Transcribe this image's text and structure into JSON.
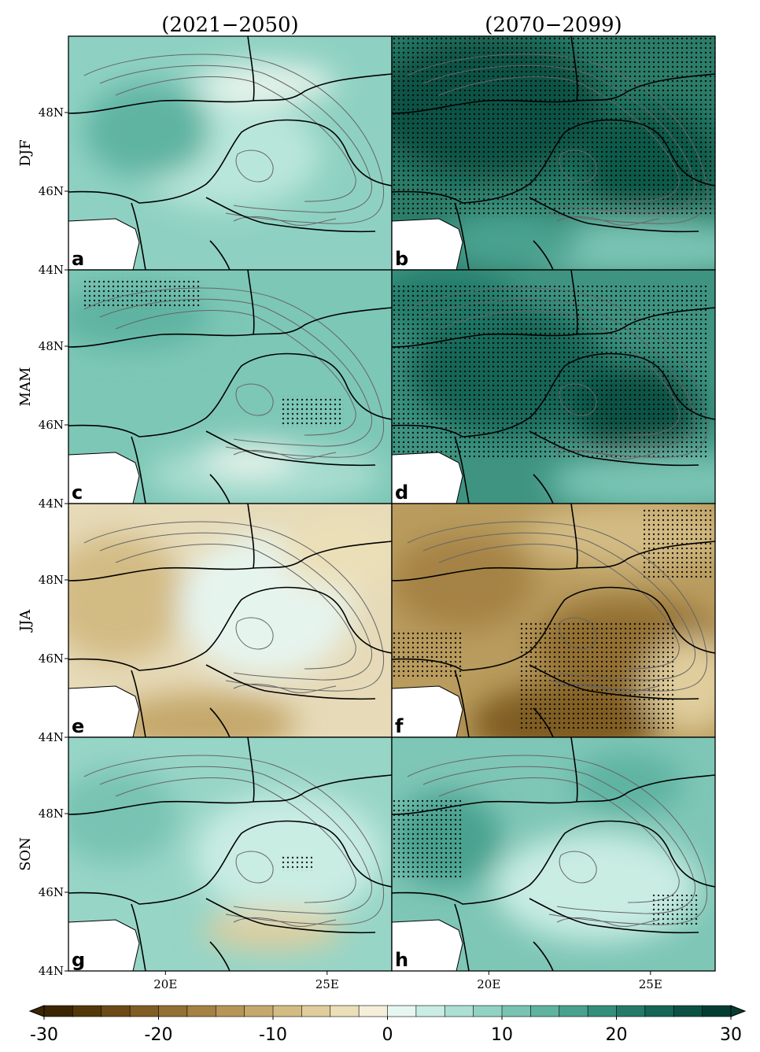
{
  "columns": [
    "(2021−2050)",
    "(2070−2099)"
  ],
  "rows": [
    "DJF",
    "MAM",
    "JJA",
    "SON"
  ],
  "panels": [
    "a",
    "b",
    "c",
    "d",
    "e",
    "f",
    "g",
    "h"
  ],
  "lat_ticks": [
    "48N",
    "46N",
    "44N"
  ],
  "lon_ticks": [
    "20E",
    "25E"
  ],
  "colorbar": {
    "lim": [
      -30,
      30
    ],
    "ticks": [
      -30,
      -20,
      -10,
      0,
      10,
      20,
      30
    ],
    "colors": [
      "#3b2604",
      "#54380c",
      "#6b4a17",
      "#805d24",
      "#937033",
      "#a58244",
      "#b69557",
      "#c5a86c",
      "#d3bb84",
      "#e0cd9c",
      "#ebdfb8",
      "#f5efd9",
      "#e6f6f1",
      "#c9ece3",
      "#addfd3",
      "#92d2c3",
      "#78c3b2",
      "#5fb3a1",
      "#48a18f",
      "#348e7c",
      "#237a69",
      "#166656",
      "#0c5244",
      "#043e33"
    ]
  }
}
